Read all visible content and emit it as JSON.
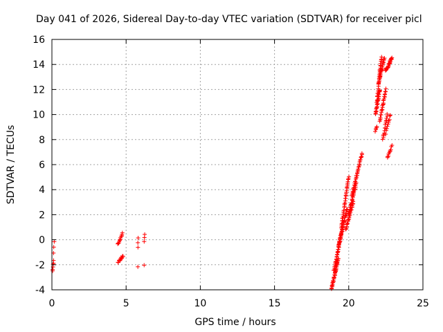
{
  "chart_data": {
    "type": "scatter",
    "title": "Day 041 of 2026, Sidereal Day-to-day VTEC variation (SDTVAR) for receiver picl",
    "xlabel": "GPS time / hours",
    "ylabel": "SDTVAR / TECUs",
    "xlim": [
      0,
      25
    ],
    "ylim": [
      -4,
      16
    ],
    "xticks": [
      0,
      5,
      10,
      15,
      20,
      25
    ],
    "yticks": [
      -4,
      -2,
      0,
      2,
      4,
      6,
      8,
      10,
      12,
      14,
      16
    ],
    "grid": true,
    "marker": "+",
    "series_color": "#ff0000",
    "segments": [
      {
        "x_start": 0.05,
        "x_end": 0.12,
        "y_start": -2.5,
        "y_end": -1.7,
        "count": 6
      },
      {
        "x_start": 0.1,
        "x_end": 0.15,
        "y_start": -1.0,
        "y_end": -0.1,
        "count": 3
      },
      {
        "x_start": 4.45,
        "x_end": 4.8,
        "y_start": -1.8,
        "y_end": -1.3,
        "count": 12
      },
      {
        "x_start": 4.45,
        "x_end": 4.75,
        "y_start": -0.4,
        "y_end": 0.5,
        "count": 12
      },
      {
        "x_start": 5.8,
        "x_end": 5.8,
        "y_start": -0.6,
        "y_end": 0.2,
        "count": 3
      },
      {
        "x_start": 5.8,
        "x_end": 5.8,
        "y_start": -2.2,
        "y_end": -2.2,
        "count": 1
      },
      {
        "x_start": 6.2,
        "x_end": 6.2,
        "y_start": -2.1,
        "y_end": -2.1,
        "count": 1
      },
      {
        "x_start": 6.2,
        "x_end": 6.25,
        "y_start": -0.2,
        "y_end": 0.5,
        "count": 3
      },
      {
        "x_start": 18.85,
        "x_end": 19.3,
        "y_start": -3.9,
        "y_end": -1.5,
        "count": 40
      },
      {
        "x_start": 19.0,
        "x_end": 19.6,
        "y_start": -2.5,
        "y_end": 1.0,
        "count": 40
      },
      {
        "x_start": 19.3,
        "x_end": 19.9,
        "y_start": -0.5,
        "y_end": 2.5,
        "count": 35
      },
      {
        "x_start": 19.5,
        "x_end": 20.0,
        "y_start": 1.0,
        "y_end": 5.0,
        "count": 35
      },
      {
        "x_start": 19.8,
        "x_end": 20.3,
        "y_start": 0.8,
        "y_end": 3.0,
        "count": 25
      },
      {
        "x_start": 20.0,
        "x_end": 20.5,
        "y_start": 2.0,
        "y_end": 4.5,
        "count": 30
      },
      {
        "x_start": 20.2,
        "x_end": 20.9,
        "y_start": 3.5,
        "y_end": 6.9,
        "count": 35
      },
      {
        "x_start": 21.8,
        "x_end": 21.9,
        "y_start": 8.7,
        "y_end": 9.0,
        "count": 5
      },
      {
        "x_start": 21.8,
        "x_end": 22.1,
        "y_start": 10.0,
        "y_end": 12.0,
        "count": 25
      },
      {
        "x_start": 21.9,
        "x_end": 22.2,
        "y_start": 11.0,
        "y_end": 14.6,
        "count": 30
      },
      {
        "x_start": 22.0,
        "x_end": 22.4,
        "y_start": 12.5,
        "y_end": 14.5,
        "count": 25
      },
      {
        "x_start": 22.1,
        "x_end": 22.5,
        "y_start": 9.5,
        "y_end": 12.0,
        "count": 25
      },
      {
        "x_start": 22.3,
        "x_end": 22.6,
        "y_start": 8.0,
        "y_end": 10.0,
        "count": 15
      },
      {
        "x_start": 22.5,
        "x_end": 22.8,
        "y_start": 8.5,
        "y_end": 10.0,
        "count": 10
      },
      {
        "x_start": 22.5,
        "x_end": 22.9,
        "y_start": 13.5,
        "y_end": 14.5,
        "count": 25
      },
      {
        "x_start": 22.6,
        "x_end": 22.9,
        "y_start": 6.5,
        "y_end": 7.5,
        "count": 10
      }
    ]
  }
}
